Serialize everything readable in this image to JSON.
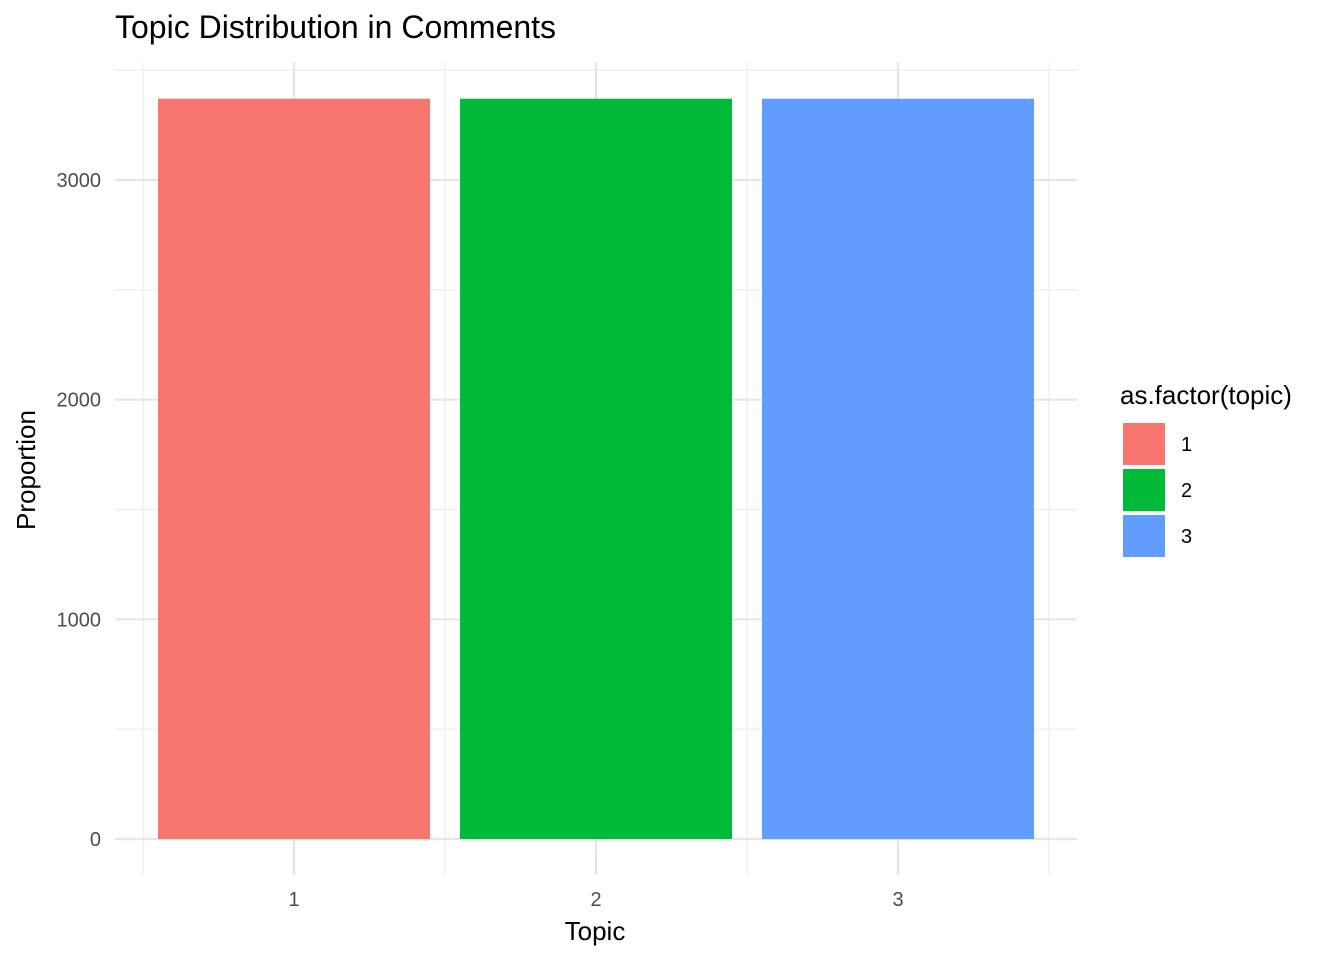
{
  "chart_data": {
    "type": "bar",
    "title": "Topic Distribution in Comments",
    "xlabel": "Topic",
    "ylabel": "Proportion",
    "categories": [
      "1",
      "2",
      "3"
    ],
    "values": [
      3370,
      3370,
      3370
    ],
    "ylim": [
      0,
      3370
    ],
    "y_ticks": [
      0,
      1000,
      2000,
      3000
    ],
    "y_tick_labels": [
      "0",
      "1000",
      "2000",
      "3000"
    ],
    "grid": true,
    "legend": {
      "title": "as.factor(topic)",
      "placement": "right",
      "entries": [
        {
          "label": "1",
          "color": "#F8766D"
        },
        {
          "label": "2",
          "color": "#00BA38"
        },
        {
          "label": "3",
          "color": "#619CFF"
        }
      ]
    },
    "colors": [
      "#F8766D",
      "#00BA38",
      "#619CFF"
    ]
  }
}
